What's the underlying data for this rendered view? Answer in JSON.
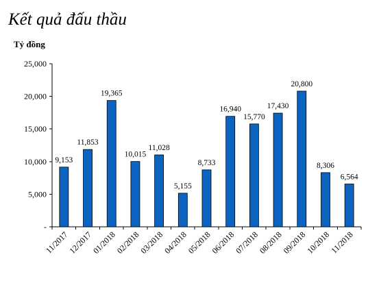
{
  "chart_data": {
    "type": "bar",
    "title": "Kết quả đấu thầu",
    "ylabel": "Tỷ đồng",
    "xlabel": "",
    "categories": [
      "11/2017",
      "12/2017",
      "01/2018",
      "02/2018",
      "03/2018",
      "04/2018",
      "05/2018",
      "06/2018",
      "07/2018",
      "08/2018",
      "09/2018",
      "10/2018",
      "11/2018"
    ],
    "values": [
      9153,
      11853,
      19365,
      10015,
      11028,
      5155,
      8733,
      16940,
      15770,
      17430,
      20800,
      8306,
      6564
    ],
    "data_labels": [
      "9,153",
      "11,853",
      "19,365",
      "10,015",
      "11,028",
      "5,155",
      "8,733",
      "16,940",
      "15,770",
      "17,430",
      "20,800",
      "8,306",
      "6,564"
    ],
    "ylim": [
      0,
      25000
    ],
    "yticks": [
      0,
      5000,
      10000,
      15000,
      20000,
      25000
    ],
    "ytick_labels": [
      "-",
      "5,000",
      "10,000",
      "15,000",
      "20,000",
      "25,000"
    ],
    "grid": false,
    "legend": "none",
    "bar_color": "#0B64C0"
  }
}
